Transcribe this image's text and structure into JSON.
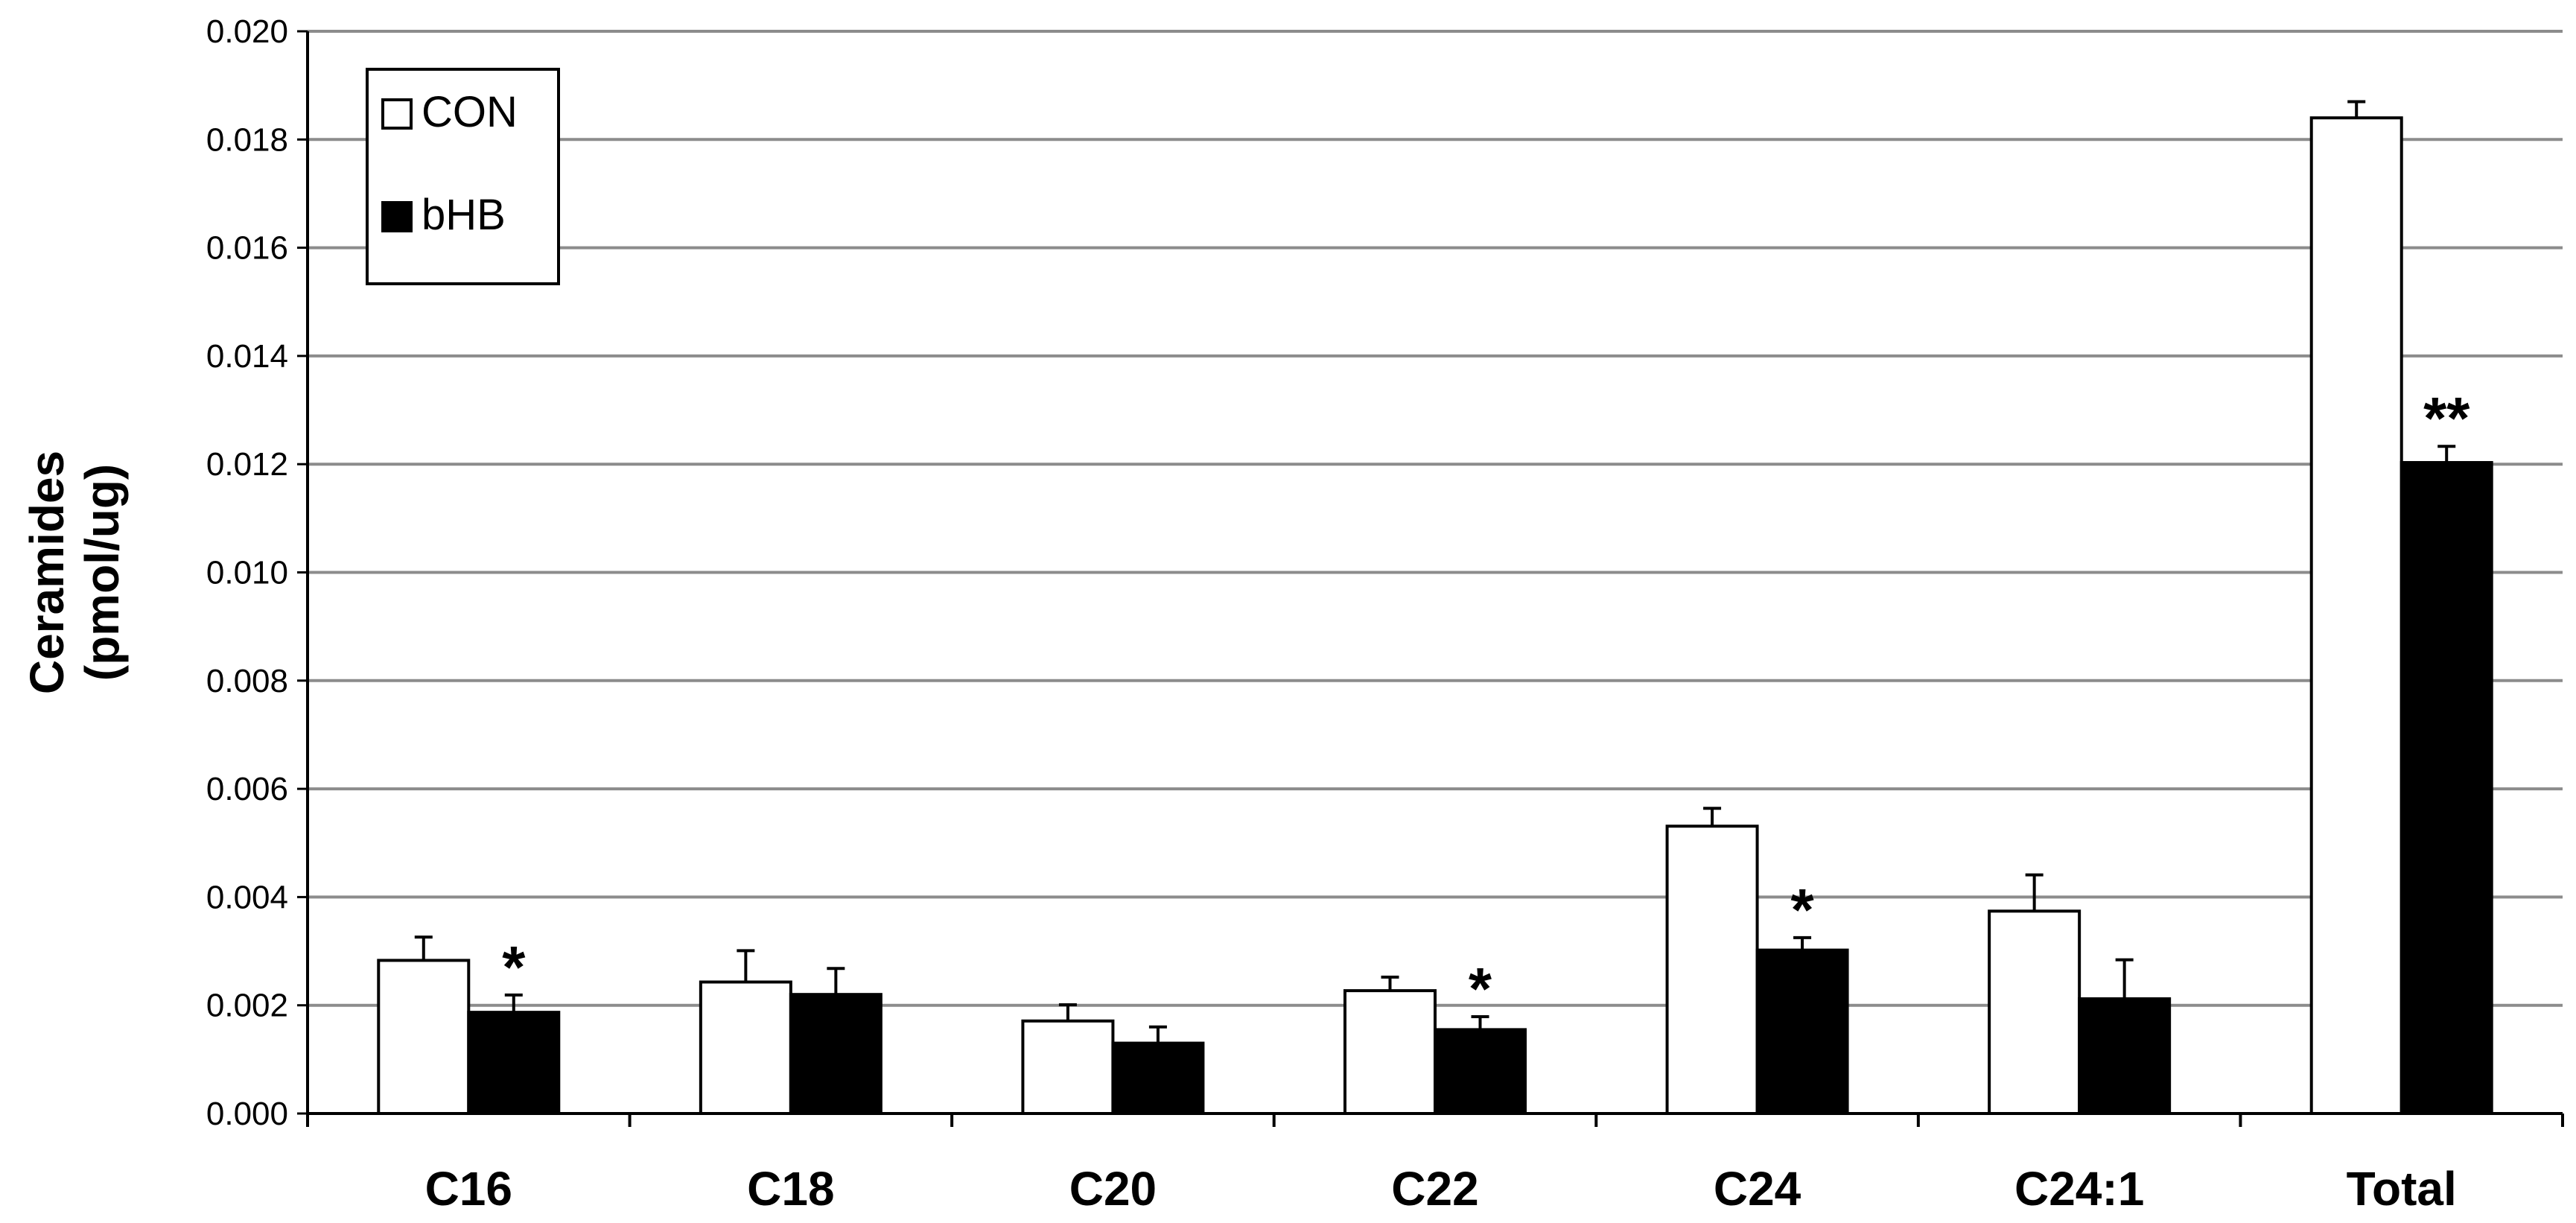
{
  "chart_data": {
    "type": "bar",
    "ylabel_lines": [
      "Ceramides",
      "(pmol/ug)"
    ],
    "xlabel": "",
    "ylim": [
      0,
      0.02
    ],
    "y_ticks": [
      "0.000",
      "0.002",
      "0.004",
      "0.006",
      "0.008",
      "0.010",
      "0.012",
      "0.014",
      "0.016",
      "0.018",
      "0.020"
    ],
    "grid": "horizontal",
    "legend_position": "top-left",
    "categories": [
      "C16",
      "C18",
      "C20",
      "C22",
      "C24",
      "C24:1",
      "Total"
    ],
    "series": [
      {
        "name": "CON",
        "color": "#ffffff",
        "values": [
          0.00283,
          0.00243,
          0.00171,
          0.00227,
          0.00531,
          0.00374,
          0.0184
        ],
        "errors": [
          0.00043,
          0.00058,
          0.0003,
          0.00025,
          0.00033,
          0.00067,
          0.0003
        ]
      },
      {
        "name": "bHB",
        "color": "#000000",
        "values": [
          0.00187,
          0.0022,
          0.0013,
          0.00155,
          0.00302,
          0.00212,
          0.01203
        ],
        "errors": [
          0.00032,
          0.00048,
          0.0003,
          0.00024,
          0.00023,
          0.00072,
          0.0003
        ]
      }
    ],
    "significance": [
      "*",
      "",
      "",
      "*",
      "*",
      "",
      "**"
    ]
  }
}
